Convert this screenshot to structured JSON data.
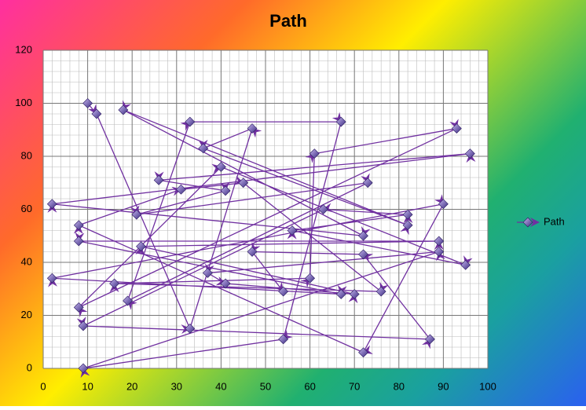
{
  "chart_data": {
    "type": "line",
    "title": "Path",
    "x": [
      10,
      12,
      33,
      47,
      36,
      82,
      18,
      72,
      2,
      96,
      26,
      41,
      21,
      73,
      19,
      33,
      67,
      54,
      9,
      89,
      37,
      41,
      70,
      22,
      89,
      8,
      67,
      2,
      90,
      72,
      8,
      31,
      45,
      76,
      16,
      60,
      61,
      93,
      8,
      40,
      95,
      56,
      82,
      63,
      9,
      87,
      72,
      47,
      54
    ],
    "series": [
      {
        "name": "Path",
        "color": "#7030a0",
        "values": [
          100,
          96,
          15,
          90.5,
          83,
          54,
          97.5,
          50,
          62,
          81,
          71,
          67,
          58,
          70,
          25.5,
          93,
          93,
          11,
          0,
          44,
          36,
          32,
          28,
          46,
          48,
          48,
          28,
          34,
          62,
          6,
          54,
          67.5,
          70,
          29,
          32,
          34,
          81,
          90.5,
          23,
          76,
          39,
          52,
          58,
          60,
          16,
          11,
          43,
          44,
          29
        ]
      }
    ],
    "xlim": [
      0,
      100
    ],
    "xticks": [
      0,
      10,
      20,
      30,
      40,
      50,
      60,
      70,
      80,
      90,
      100
    ],
    "ylim": [
      0,
      120
    ],
    "yticks": [
      0,
      20,
      40,
      60,
      80,
      100,
      120
    ],
    "grid": true,
    "legend": "right"
  }
}
